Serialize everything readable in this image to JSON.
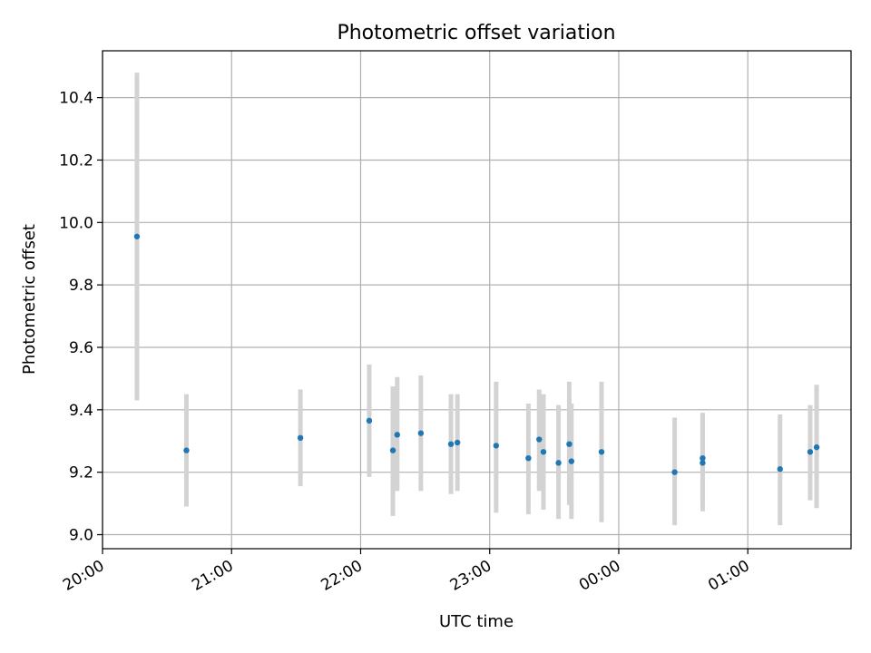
{
  "chart_data": {
    "type": "scatter",
    "title": "Photometric offset variation",
    "xlabel": "UTC time",
    "ylabel": "Photometric offset",
    "x_axis_type": "time",
    "xlim": [
      "20:00",
      "25:48"
    ],
    "ylim": [
      8.955,
      10.55
    ],
    "x_tick_labels": [
      "20:00",
      "21:00",
      "22:00",
      "23:00",
      "00:00",
      "01:00"
    ],
    "y_ticks": [
      9.0,
      9.2,
      9.4,
      9.6,
      9.8,
      10.0,
      10.2,
      10.4
    ],
    "y_tick_labels": [
      "9.0",
      "9.2",
      "9.4",
      "9.6",
      "9.8",
      "10.0",
      "10.2",
      "10.4"
    ],
    "grid": true,
    "colors": {
      "marker": "#1f77b4",
      "errorbar": "#d3d3d3",
      "grid": "#b0b0b0"
    },
    "series": [
      {
        "points": [
          {
            "t": "20:16",
            "y": 9.955,
            "lo": 9.43,
            "hi": 10.48
          },
          {
            "t": "20:39",
            "y": 9.27,
            "lo": 9.09,
            "hi": 9.45
          },
          {
            "t": "21:32",
            "y": 9.31,
            "lo": 9.155,
            "hi": 9.465
          },
          {
            "t": "22:04",
            "y": 9.365,
            "lo": 9.185,
            "hi": 9.545
          },
          {
            "t": "22:15",
            "y": 9.27,
            "lo": 9.06,
            "hi": 9.475
          },
          {
            "t": "22:17",
            "y": 9.32,
            "lo": 9.14,
            "hi": 9.505
          },
          {
            "t": "22:28",
            "y": 9.325,
            "lo": 9.14,
            "hi": 9.51
          },
          {
            "t": "22:42",
            "y": 9.29,
            "lo": 9.13,
            "hi": 9.45
          },
          {
            "t": "22:45",
            "y": 9.295,
            "lo": 9.14,
            "hi": 9.45
          },
          {
            "t": "23:03",
            "y": 9.285,
            "lo": 9.07,
            "hi": 9.49
          },
          {
            "t": "23:18",
            "y": 9.245,
            "lo": 9.065,
            "hi": 9.42
          },
          {
            "t": "23:23",
            "y": 9.305,
            "lo": 9.14,
            "hi": 9.465
          },
          {
            "t": "23:25",
            "y": 9.265,
            "lo": 9.08,
            "hi": 9.45
          },
          {
            "t": "23:32",
            "y": 9.23,
            "lo": 9.05,
            "hi": 9.415
          },
          {
            "t": "23:37",
            "y": 9.29,
            "lo": 9.095,
            "hi": 9.49
          },
          {
            "t": "23:38",
            "y": 9.235,
            "lo": 9.05,
            "hi": 9.42
          },
          {
            "t": "23:52",
            "y": 9.265,
            "lo": 9.04,
            "hi": 9.49
          },
          {
            "t": "24:26",
            "y": 9.2,
            "lo": 9.03,
            "hi": 9.375
          },
          {
            "t": "24:39",
            "y": 9.23,
            "lo": 9.075,
            "hi": 9.39
          },
          {
            "t": "24:39",
            "y": 9.245,
            "lo": 9.1,
            "hi": 9.39
          },
          {
            "t": "25:15",
            "y": 9.21,
            "lo": 9.03,
            "hi": 9.385
          },
          {
            "t": "25:29",
            "y": 9.265,
            "lo": 9.11,
            "hi": 9.415
          },
          {
            "t": "25:32",
            "y": 9.28,
            "lo": 9.085,
            "hi": 9.48
          }
        ]
      }
    ]
  }
}
